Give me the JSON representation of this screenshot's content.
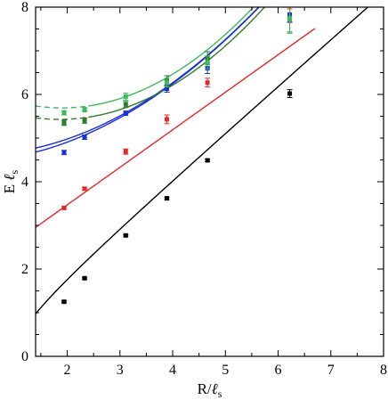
{
  "chart_data": {
    "type": "scatter",
    "title": "",
    "xlabel": {
      "main": "R/",
      "italic": "ℓ",
      "sub": "s"
    },
    "ylabel": {
      "main": "E ",
      "italic": "ℓ",
      "sub": "s"
    },
    "xlim": [
      1.4,
      8
    ],
    "ylim": [
      0,
      8
    ],
    "xticks": [
      2,
      3,
      4,
      5,
      6,
      7,
      8
    ],
    "yticks": [
      0,
      2,
      4,
      6,
      8
    ],
    "x_tick_labels": [
      "2",
      "3",
      "4",
      "5",
      "6",
      "7",
      "8"
    ],
    "y_tick_labels": [
      "0",
      "2",
      "4",
      "6",
      "8"
    ],
    "grid": false,
    "legend": "none",
    "series": [
      {
        "color": "#000000",
        "points": [
          [
            1.94,
            1.25
          ],
          [
            2.33,
            1.79
          ],
          [
            3.11,
            2.77
          ],
          [
            3.89,
            3.62
          ],
          [
            4.66,
            4.49
          ],
          [
            6.22,
            6.02
          ]
        ],
        "errors": [
          0.02,
          0.02,
          0.02,
          0.03,
          0.03,
          0.09
        ],
        "curve": "sqrt"
      },
      {
        "color": "#e8262a",
        "points": [
          [
            1.94,
            3.4
          ],
          [
            2.33,
            3.84
          ],
          [
            3.11,
            4.69
          ],
          [
            3.89,
            5.43
          ],
          [
            4.66,
            6.27
          ],
          [
            6.22,
            7.81
          ]
        ],
        "errors": [
          0.03,
          0.03,
          0.06,
          0.1,
          0.1,
          0.15
        ],
        "curve": "linear"
      },
      {
        "color": "#1a2ed8",
        "points": [
          [
            1.94,
            4.67
          ],
          [
            2.33,
            5.02
          ],
          [
            3.11,
            5.57
          ],
          [
            3.89,
            6.13
          ],
          [
            4.66,
            6.6
          ],
          [
            6.22,
            7.83
          ]
        ],
        "errors": [
          0.05,
          0.05,
          0.05,
          0.08,
          0.12,
          0.18
        ],
        "curve": "quad"
      },
      {
        "color": "#2d7d2d",
        "points": [
          [
            1.94,
            5.35
          ],
          [
            2.33,
            5.4
          ],
          [
            3.11,
            5.77
          ],
          [
            3.89,
            6.31
          ],
          [
            4.66,
            6.83
          ],
          [
            6.22,
            7.73
          ]
        ],
        "errors": [
          0.06,
          0.06,
          0.07,
          0.12,
          0.15,
          0.3
        ],
        "curve": "quad"
      },
      {
        "color": "#3dbb5a",
        "points": [
          [
            1.94,
            5.58
          ],
          [
            2.33,
            5.65
          ],
          [
            3.11,
            5.95
          ],
          [
            3.89,
            6.27
          ],
          [
            4.66,
            6.73
          ],
          [
            6.22,
            7.75
          ]
        ],
        "errors": [
          0.05,
          0.05,
          0.08,
          0.1,
          0.15,
          0.35
        ],
        "curve": "quad"
      }
    ],
    "fit_lines": [
      {
        "color": "#000000",
        "form": "sqrt",
        "params": {
          "sigma": 1.06,
          "c": -0.1
        },
        "x_range": [
          1.4,
          8
        ],
        "style": "solid"
      },
      {
        "color": "#e8262a",
        "form": "linear",
        "params": {
          "a": 0.86,
          "b": 1.75
        },
        "x_range": [
          1.4,
          6.7
        ],
        "style": "solid"
      },
      {
        "color": "#1a2ed8",
        "form": "poly2",
        "params": {
          "a": 4.71,
          "b": 0.34,
          "c": 0.11,
          "x0": 1.5
        },
        "x_range": [
          1.4,
          6.3
        ],
        "style": "solid"
      },
      {
        "color": "#1a2ed8",
        "form": "poly2",
        "params": {
          "a": 4.8,
          "b": 0.3,
          "c": 0.115,
          "x0": 1.5
        },
        "x_range": [
          1.4,
          6.3
        ],
        "style": "solid"
      },
      {
        "color": "#2d7d2d",
        "form": "poly2",
        "params": {
          "a": 5.45,
          "b": -0.12,
          "c": 0.17,
          "x0": 1.5
        },
        "x_range": [
          1.4,
          2.4
        ],
        "style": "dashed"
      },
      {
        "color": "#2d7d2d",
        "form": "poly2",
        "params": {
          "a": 5.45,
          "b": -0.12,
          "c": 0.17,
          "x0": 1.5
        },
        "x_range": [
          2.4,
          6.3
        ],
        "style": "solid"
      },
      {
        "color": "#3dbb5a",
        "form": "poly2",
        "params": {
          "a": 5.72,
          "b": -0.14,
          "c": 0.175,
          "x0": 1.5
        },
        "x_range": [
          1.4,
          2.4
        ],
        "style": "dashed"
      },
      {
        "color": "#3dbb5a",
        "form": "poly2",
        "params": {
          "a": 5.72,
          "b": -0.14,
          "c": 0.175,
          "x0": 1.5
        },
        "x_range": [
          2.4,
          6.3
        ],
        "style": "solid"
      }
    ]
  }
}
